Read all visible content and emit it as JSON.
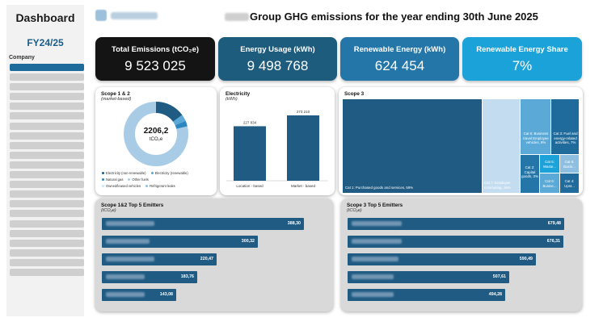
{
  "sidebar": {
    "title": "Dashboard",
    "fiscal_year": "FY24/25",
    "company_label": "Company",
    "companies_count_visible": 22
  },
  "header": {
    "logo_name": "Rawstone",
    "title": "Group GHG emissions for the year ending 30th June 2025"
  },
  "kpis": [
    {
      "label": "Total Emissions (tCO₂e)",
      "value": "9 523 025"
    },
    {
      "label": "Energy Usage (kWh)",
      "value": "9 498 768"
    },
    {
      "label": "Renewable Energy (kWh)",
      "value": "624 454"
    },
    {
      "label": "Renewable Energy Share",
      "value": "7%"
    }
  ],
  "scope12": {
    "title": "Scope 1 & 2",
    "subtitle": "(market-based)",
    "center_value": "2206,2",
    "center_unit": "tCO₂e",
    "legend": [
      {
        "label": "Electricity (non-renewable)",
        "color": "#1f5b82"
      },
      {
        "label": "Electricity (renewable)",
        "color": "#5aa9d6"
      },
      {
        "label": "Natural gas",
        "color": "#2e86c1"
      },
      {
        "label": "Other fuels",
        "color": "#a8cbe6"
      },
      {
        "label": "Owned/leased vehicles",
        "color": "#cfe3f2"
      },
      {
        "label": "Refrigerant leaks",
        "color": "#8fbfe0"
      }
    ]
  },
  "electricity": {
    "title": "Electricity",
    "subtitle": "(kWh)",
    "chart_data": {
      "type": "bar",
      "categories": [
        "Location - based",
        "Market - based"
      ],
      "values": [
        227834,
        273210
      ],
      "value_labels": [
        "227 834",
        "273 210"
      ],
      "title": "Electricity",
      "ylabel": "(kWh)",
      "ylim": [
        0,
        290000
      ]
    }
  },
  "scope3": {
    "title": "Scope 3",
    "cells": [
      {
        "label": "Cat 1: Purchased goods and services, 59%"
      },
      {
        "label": "Cat 7: Employee commuting, 16%"
      },
      {
        "label": "Cat 6: Business travel Employee vehicles, 8%"
      },
      {
        "label": "Cat 3: Fuel and energy-related activities, 7%"
      },
      {
        "label": "Cat 2: Capital goods, 3%"
      },
      {
        "label": "Cat 5: Waste..."
      },
      {
        "label": "Cat 6: Busin..."
      },
      {
        "label": "Cat 6: Busine..."
      },
      {
        "label": "Cat 4: Upst..."
      }
    ]
  },
  "em12": {
    "title": "Scope 1&2 Top 5 Emitters",
    "subtitle": "(tCO₂e)",
    "chart_data": {
      "type": "bar",
      "orientation": "horizontal",
      "values": [
        388.3,
        300.32,
        220.47,
        183.76,
        143.08
      ],
      "value_labels": [
        "388,30",
        "300,32",
        "220,47",
        "183,76",
        "143,08"
      ]
    }
  },
  "em3": {
    "title": "Scope 3 Top 5 Emitters",
    "subtitle": "(tCO₂e)",
    "chart_data": {
      "type": "bar",
      "orientation": "horizontal",
      "values": [
        679.48,
        676.31,
        590.49,
        507.61,
        494.28
      ],
      "value_labels": [
        "679,48",
        "676,31",
        "590,49",
        "507,61",
        "494,28"
      ]
    }
  }
}
